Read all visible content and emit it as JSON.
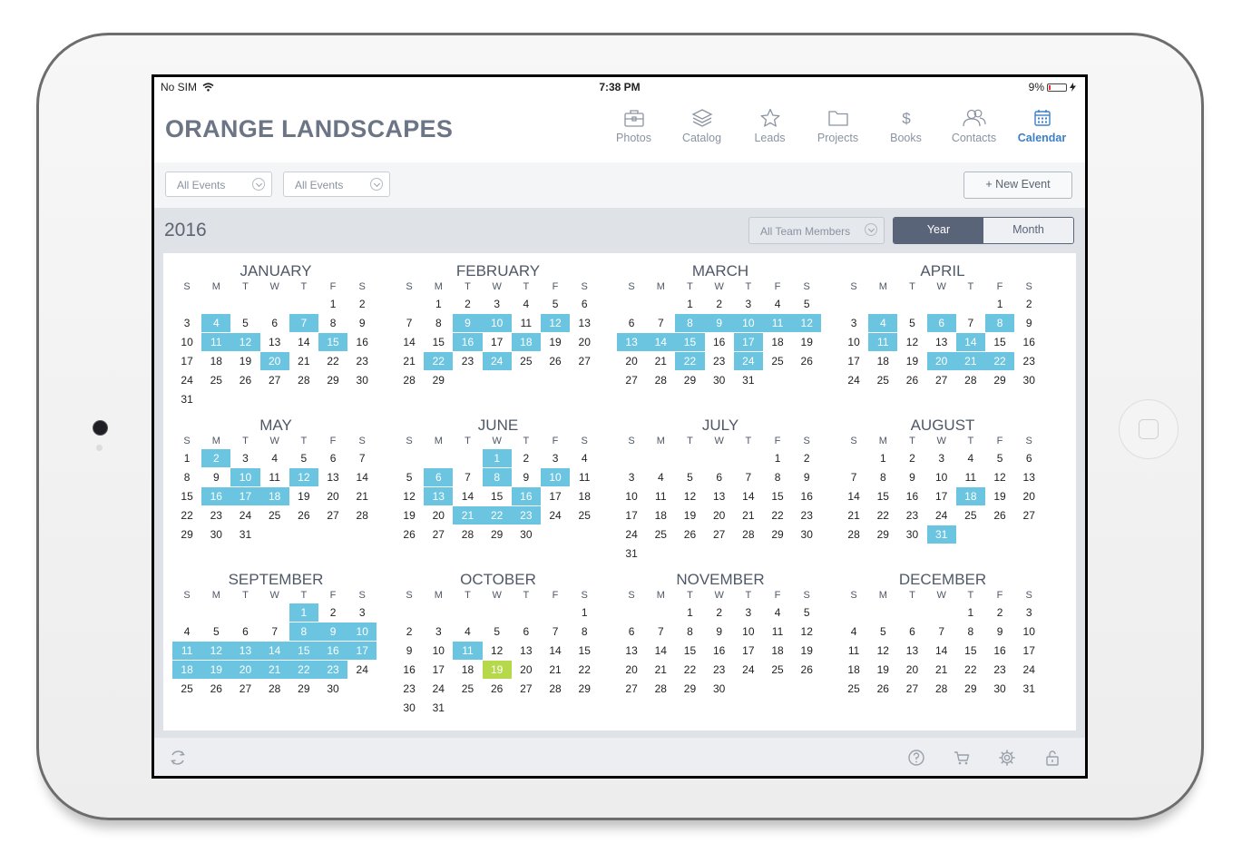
{
  "status_bar": {
    "carrier": "No SIM",
    "time": "7:38 PM",
    "battery": "9%"
  },
  "app": {
    "title": "ORANGE LANDSCAPES"
  },
  "nav": [
    {
      "label": "Photos",
      "icon": "briefcase-icon",
      "active": false
    },
    {
      "label": "Catalog",
      "icon": "layers-icon",
      "active": false
    },
    {
      "label": "Leads",
      "icon": "star-icon",
      "active": false
    },
    {
      "label": "Projects",
      "icon": "folder-icon",
      "active": false
    },
    {
      "label": "Books",
      "icon": "dollar-icon",
      "active": false
    },
    {
      "label": "Contacts",
      "icon": "contacts-icon",
      "active": false
    },
    {
      "label": "Calendar",
      "icon": "calendar-icon",
      "active": true
    }
  ],
  "filters": {
    "select1": "All Events",
    "select2": "All Events",
    "new_event": "+ New Event"
  },
  "yearbar": {
    "year": "2016",
    "team_select": "All Team Members",
    "view_year": "Year",
    "view_month": "Month"
  },
  "colors": {
    "event": "#6cc5e0",
    "today": "#b6d94c",
    "accent": "#3c80c8"
  },
  "weekday_headers": [
    "S",
    "M",
    "T",
    "W",
    "T",
    "F",
    "S"
  ],
  "months": [
    {
      "name": "JANUARY",
      "start": 5,
      "days": 31,
      "events": [
        4,
        7,
        11,
        12,
        15,
        20
      ]
    },
    {
      "name": "FEBRUARY",
      "start": 1,
      "days": 29,
      "events": [
        9,
        10,
        12,
        16,
        18,
        22,
        24
      ]
    },
    {
      "name": "MARCH",
      "start": 2,
      "days": 31,
      "events": [
        8,
        9,
        10,
        11,
        12,
        13,
        14,
        15,
        17,
        22,
        24
      ]
    },
    {
      "name": "APRIL",
      "start": 5,
      "days": 30,
      "events": [
        4,
        6,
        8,
        11,
        14,
        20,
        21,
        22
      ]
    },
    {
      "name": "MAY",
      "start": 0,
      "days": 31,
      "events": [
        2,
        10,
        12,
        16,
        17,
        18
      ]
    },
    {
      "name": "JUNE",
      "start": 3,
      "days": 30,
      "events": [
        1,
        6,
        8,
        10,
        13,
        16,
        21,
        22,
        23
      ]
    },
    {
      "name": "JULY",
      "start": 5,
      "days": 31,
      "events": []
    },
    {
      "name": "AUGUST",
      "start": 1,
      "days": 31,
      "events": [
        18,
        31
      ]
    },
    {
      "name": "SEPTEMBER",
      "start": 4,
      "days": 30,
      "events": [
        1,
        8,
        9,
        10,
        11,
        12,
        13,
        14,
        15,
        16,
        17,
        18,
        19,
        20,
        21,
        22,
        23
      ]
    },
    {
      "name": "OCTOBER",
      "start": 6,
      "days": 31,
      "events": [
        11
      ],
      "today": 19
    },
    {
      "name": "NOVEMBER",
      "start": 2,
      "days": 30,
      "events": []
    },
    {
      "name": "DECEMBER",
      "start": 4,
      "days": 31,
      "events": []
    }
  ],
  "toolbar": {
    "left": "sync-icon",
    "right": [
      "help-icon",
      "cart-icon",
      "settings-icon",
      "lock-icon"
    ]
  }
}
